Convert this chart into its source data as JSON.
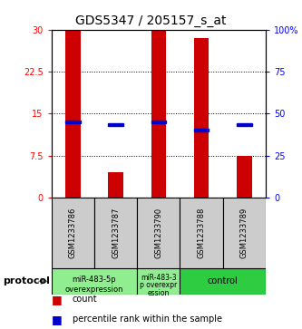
{
  "title": "GDS5347 / 205157_s_at",
  "samples": [
    "GSM1233786",
    "GSM1233787",
    "GSM1233790",
    "GSM1233788",
    "GSM1233789"
  ],
  "count_values": [
    30,
    4.5,
    30,
    28.5,
    7.5
  ],
  "percentile_values": [
    13.5,
    13.0,
    13.5,
    12.0,
    13.0
  ],
  "ylim_left": [
    0,
    30
  ],
  "yticks_left": [
    0,
    7.5,
    15,
    22.5,
    30
  ],
  "ytick_labels_left": [
    "0",
    "7.5",
    "15",
    "22.5",
    "30"
  ],
  "yticks_right": [
    0,
    25,
    50,
    75,
    100
  ],
  "ytick_labels_right": [
    "0",
    "25",
    "50",
    "75",
    "100%"
  ],
  "bar_color": "#cc0000",
  "percentile_color": "#0000cc",
  "bar_width": 0.35,
  "group1_label_line1": "miR-483-5p",
  "group1_label_line2": "overexpression",
  "group1_samples": [
    0,
    1
  ],
  "group1_color": "#90EE90",
  "group2_label_line1": "miR-483-3",
  "group2_label_line2": "p overexpr",
  "group2_label_line3": "ession",
  "group2_samples": [
    2
  ],
  "group2_color": "#90EE90",
  "group3_label": "control",
  "group3_samples": [
    3,
    4
  ],
  "group3_color": "#2ecc40",
  "protocol_label": "protocol",
  "legend_count_label": "count",
  "legend_percentile_label": "percentile rank within the sample",
  "sample_bg_color": "#cccccc",
  "title_fontsize": 10,
  "tick_fontsize": 7,
  "sample_fontsize": 6,
  "proto_fontsize": 6,
  "legend_fontsize": 7
}
